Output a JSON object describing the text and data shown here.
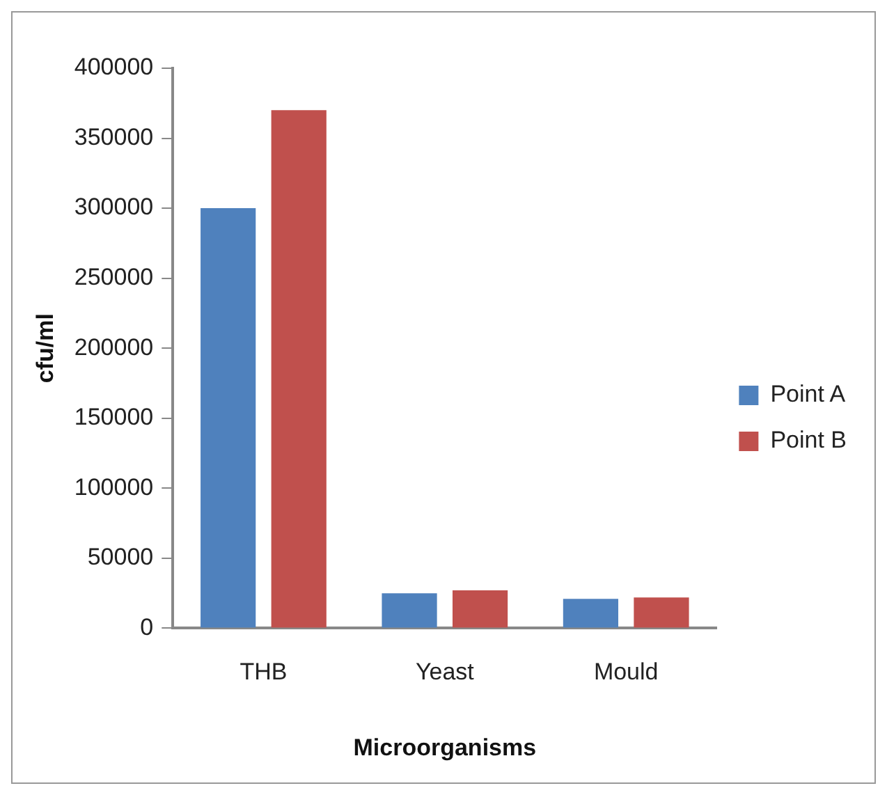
{
  "chart_data": {
    "type": "bar",
    "xlabel": "Microorganisms",
    "ylabel": "cfu/ml",
    "categories": [
      "THB",
      "Yeast",
      "Mould"
    ],
    "series": [
      {
        "name": "Point A",
        "color": "#4f81bd",
        "values": [
          300000,
          25000,
          21000
        ]
      },
      {
        "name": "Point B",
        "color": "#c0504d",
        "values": [
          370000,
          27000,
          22000
        ]
      }
    ],
    "ylim": [
      0,
      400000
    ],
    "yticks": [
      0,
      50000,
      100000,
      150000,
      200000,
      250000,
      300000,
      350000,
      400000
    ],
    "grid": false,
    "legend": "right"
  }
}
